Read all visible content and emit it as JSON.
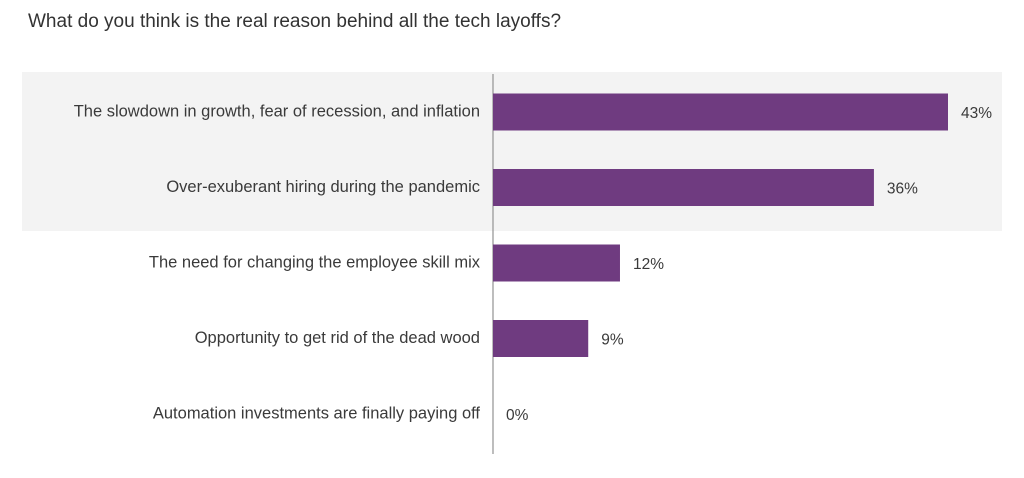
{
  "chart_data": {
    "type": "bar",
    "orientation": "horizontal",
    "title": "What do you think is the real reason behind all the tech layoffs?",
    "categories": [
      "The slowdown in growth, fear of recession, and inflation",
      "Over-exuberant hiring during the pandemic",
      "The need for changing the employee skill mix",
      "Opportunity to get rid of the dead wood",
      "Automation investments are finally paying off"
    ],
    "values": [
      43,
      36,
      12,
      9,
      0
    ],
    "value_labels": [
      "43%",
      "36%",
      "12%",
      "9%",
      "0%"
    ],
    "highlighted_categories": [
      0,
      1
    ],
    "xlim": [
      0,
      45
    ],
    "grid": false,
    "legend": "none"
  },
  "colors": {
    "bar": "#6f3b80",
    "highlight_band": "#f3f3f3",
    "axis": "#9a9a9a",
    "text": "#333333"
  }
}
